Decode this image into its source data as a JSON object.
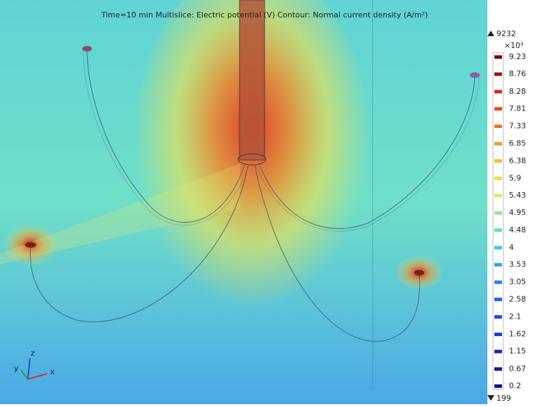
{
  "title": "Time=10 min  Multislice: Electric potential (V)  Contour: Normal current density (A/m²)",
  "colorbar": {
    "max": 9232,
    "min": 199,
    "multiplier": "×10³",
    "ticks": [
      9.23,
      8.76,
      8.28,
      7.81,
      7.33,
      6.85,
      6.38,
      5.9,
      5.43,
      4.95,
      4.48,
      4,
      3.53,
      3.05,
      2.58,
      2.1,
      1.62,
      1.15,
      0.67,
      0.2
    ]
  },
  "axes_triad": {
    "z": "z",
    "y": "y",
    "x": "x"
  }
}
